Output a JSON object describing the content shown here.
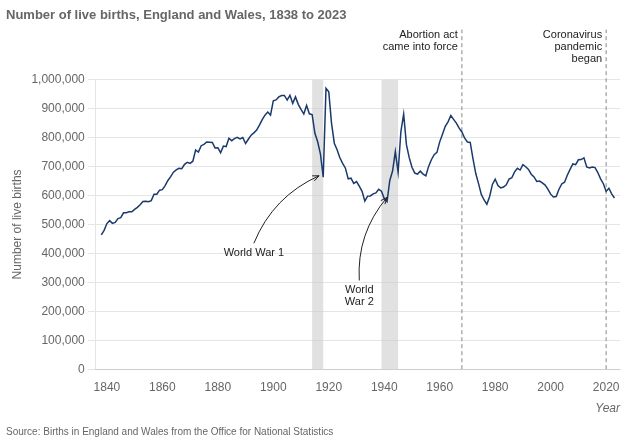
{
  "chart_data": {
    "type": "line",
    "title": "Number of live births, England and Wales, 1838 to 2023",
    "subtitle": "Source: Births in England and Wales from the Office for National Statistics",
    "xlabel": "Year",
    "ylabel": "Number of live births",
    "x": [
      1838,
      1839,
      1840,
      1841,
      1842,
      1843,
      1844,
      1845,
      1846,
      1847,
      1848,
      1849,
      1850,
      1851,
      1852,
      1853,
      1854,
      1855,
      1856,
      1857,
      1858,
      1859,
      1860,
      1861,
      1862,
      1863,
      1864,
      1865,
      1866,
      1867,
      1868,
      1869,
      1870,
      1871,
      1872,
      1873,
      1874,
      1875,
      1876,
      1877,
      1878,
      1879,
      1880,
      1881,
      1882,
      1883,
      1884,
      1885,
      1886,
      1887,
      1888,
      1889,
      1890,
      1891,
      1892,
      1893,
      1894,
      1895,
      1896,
      1897,
      1898,
      1899,
      1900,
      1901,
      1902,
      1903,
      1904,
      1905,
      1906,
      1907,
      1908,
      1909,
      1910,
      1911,
      1912,
      1913,
      1914,
      1915,
      1916,
      1917,
      1918,
      1919,
      1920,
      1921,
      1922,
      1923,
      1924,
      1925,
      1926,
      1927,
      1928,
      1929,
      1930,
      1931,
      1932,
      1933,
      1934,
      1935,
      1936,
      1937,
      1938,
      1939,
      1940,
      1941,
      1942,
      1943,
      1944,
      1945,
      1946,
      1947,
      1948,
      1949,
      1950,
      1951,
      1952,
      1953,
      1954,
      1955,
      1956,
      1957,
      1958,
      1959,
      1960,
      1961,
      1962,
      1963,
      1964,
      1965,
      1966,
      1967,
      1968,
      1969,
      1970,
      1971,
      1972,
      1973,
      1974,
      1975,
      1976,
      1977,
      1978,
      1979,
      1980,
      1981,
      1982,
      1983,
      1984,
      1985,
      1986,
      1987,
      1988,
      1989,
      1990,
      1991,
      1992,
      1993,
      1994,
      1995,
      1996,
      1997,
      1998,
      1999,
      2000,
      2001,
      2002,
      2003,
      2004,
      2005,
      2006,
      2007,
      2008,
      2009,
      2010,
      2011,
      2012,
      2013,
      2014,
      2015,
      2016,
      2017,
      2018,
      2019,
      2020,
      2021,
      2022,
      2023
    ],
    "series": [
      {
        "name": "Number of live births",
        "color": "#1a3a6b",
        "values": [
          463787,
          479537,
          502956,
          512958,
          503457,
          506628,
          519854,
          523013,
          539965,
          540107,
          543536,
          543506,
          552081,
          558861,
          567795,
          579107,
          579865,
          578085,
          582091,
          604218,
          604243,
          618302,
          619945,
          634007,
          651760,
          664809,
          680199,
          688004,
          693701,
          692162,
          707543,
          714226,
          710867,
          718163,
          756992,
          750023,
          771800,
          776528,
          784819,
          784019,
          782969,
          763972,
          764823,
          747492,
          770302,
          768766,
          797347,
          789082,
          796285,
          800698,
          795052,
          799882,
          779383,
          794052,
          808034,
          815951,
          825527,
          843006,
          861691,
          877327,
          887957,
          877438,
          926966,
          929807,
          940186,
          945132,
          945392,
          929444,
          945668,
          918042,
          940372,
          914541,
          896962,
          881138,
          910676,
          881890,
          879096,
          814614,
          785520,
          742920,
          663095,
          969700,
          957782,
          848814,
          780313,
          757792,
          729900,
          710582,
          694134,
          657348,
          659568,
          641606,
          648027,
          631930,
          613972,
          580413,
          597644,
          598254,
          605292,
          608532,
          621204,
          614479,
          589322,
          579091,
          651503,
          684334,
          751478,
          679937,
          820719,
          881026,
          775306,
          730518,
          697097,
          677378,
          673735,
          683762,
          673651,
          667811,
          700335,
          723282,
          740715,
          748501,
          785005,
          811281,
          838652,
          854055,
          875972,
          862725,
          849852,
          832164,
          819272,
          797538,
          784486,
          783155,
          726047,
          675628,
          640815,
          603445,
          584270,
          569259,
          596418,
          638028,
          656234,
          634492,
          625931,
          629134,
          636818,
          656417,
          661018,
          681511,
          693577,
          687725,
          706140,
          699217,
          689656,
          673467,
          664046,
          648138,
          649485,
          643095,
          635901,
          621872,
          604441,
          594634,
          596122,
          621469,
          639721,
          645835,
          669601,
          690013,
          708711,
          706248,
          723165,
          723913,
          729674,
          698512,
          695233,
          697852,
          696271,
          679106,
          657076,
          640370,
          613936,
          624828,
          605479,
          591072
        ]
      }
    ],
    "xlim": [
      1836,
      2025
    ],
    "xticks": [
      1840,
      1860,
      1880,
      1900,
      1920,
      1940,
      1960,
      1980,
      2000,
      2020
    ],
    "ylim": [
      0,
      1000000
    ],
    "yticks": [
      0,
      {
        "value": 100000,
        "label": "100,000"
      },
      {
        "value": 200000,
        "label": "200,000"
      },
      {
        "value": 300000,
        "label": "300,000"
      },
      {
        "value": 400000,
        "label": "400,000"
      },
      {
        "value": 500000,
        "label": "500,000"
      },
      {
        "value": 600000,
        "label": "600,000"
      },
      {
        "value": 700000,
        "label": "700,000"
      },
      {
        "value": 800000,
        "label": "800,000"
      },
      {
        "value": 900000,
        "label": "900,000"
      },
      {
        "value": 1000000,
        "label": "1,000,000"
      }
    ],
    "grid": "y",
    "shaded_ranges": [
      {
        "from": 1914,
        "to": 1918
      },
      {
        "from": 1939,
        "to": 1945
      }
    ],
    "vertical_lines": [
      {
        "x": 1968,
        "label": "Abortion act\ncame into force"
      },
      {
        "x": 2020,
        "label": "Coronavirus\npandemic\nbegan"
      }
    ],
    "annotations": [
      {
        "text": "World War 1",
        "x": 1916.5,
        "y": 668000,
        "text_x": 1893,
        "text_y": 390000
      },
      {
        "text": "World\nWar 2",
        "x": 1941,
        "y": 593000,
        "text_x": 1931,
        "text_y": 220000
      }
    ]
  }
}
